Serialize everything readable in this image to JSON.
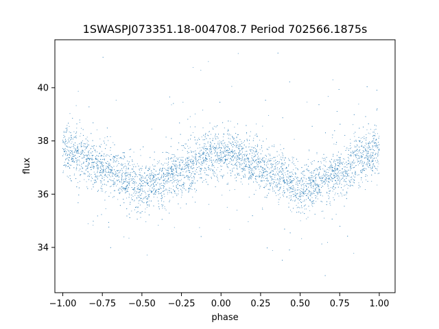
{
  "chart_data": {
    "type": "scatter",
    "title": "1SWASPJ073351.18-004708.7 Period 702566.1875s",
    "xlabel": "phase",
    "ylabel": "flux",
    "xlim": [
      -1.05,
      1.1
    ],
    "ylim": [
      32.3,
      41.8
    ],
    "x_ticks": [
      -1.0,
      -0.75,
      -0.5,
      -0.25,
      0.0,
      0.25,
      0.5,
      0.75,
      1.0
    ],
    "x_tick_labels": [
      "−1.00",
      "−0.75",
      "−0.50",
      "−0.25",
      "0.00",
      "0.25",
      "0.50",
      "0.75",
      "1.00"
    ],
    "y_ticks": [
      34,
      36,
      38,
      40
    ],
    "y_tick_labels": [
      "34",
      "36",
      "38",
      "40"
    ],
    "grid": false,
    "marker_color": "#1f77b4",
    "series": [
      {
        "trend_phase": [
          -1.0,
          -0.9,
          -0.8,
          -0.7,
          -0.6,
          -0.5,
          -0.4,
          -0.3,
          -0.2,
          -0.1,
          0.0,
          0.1,
          0.2,
          0.3,
          0.4,
          0.5,
          0.6,
          0.7,
          0.8,
          0.9,
          1.0
        ],
        "trend_flux": [
          37.7,
          37.4,
          37.1,
          36.9,
          36.6,
          36.2,
          36.4,
          36.7,
          37.0,
          37.4,
          37.6,
          37.4,
          37.1,
          36.9,
          36.6,
          36.2,
          36.4,
          36.7,
          37.0,
          37.4,
          37.6
        ],
        "scatter_sigma": 0.45
      }
    ]
  }
}
